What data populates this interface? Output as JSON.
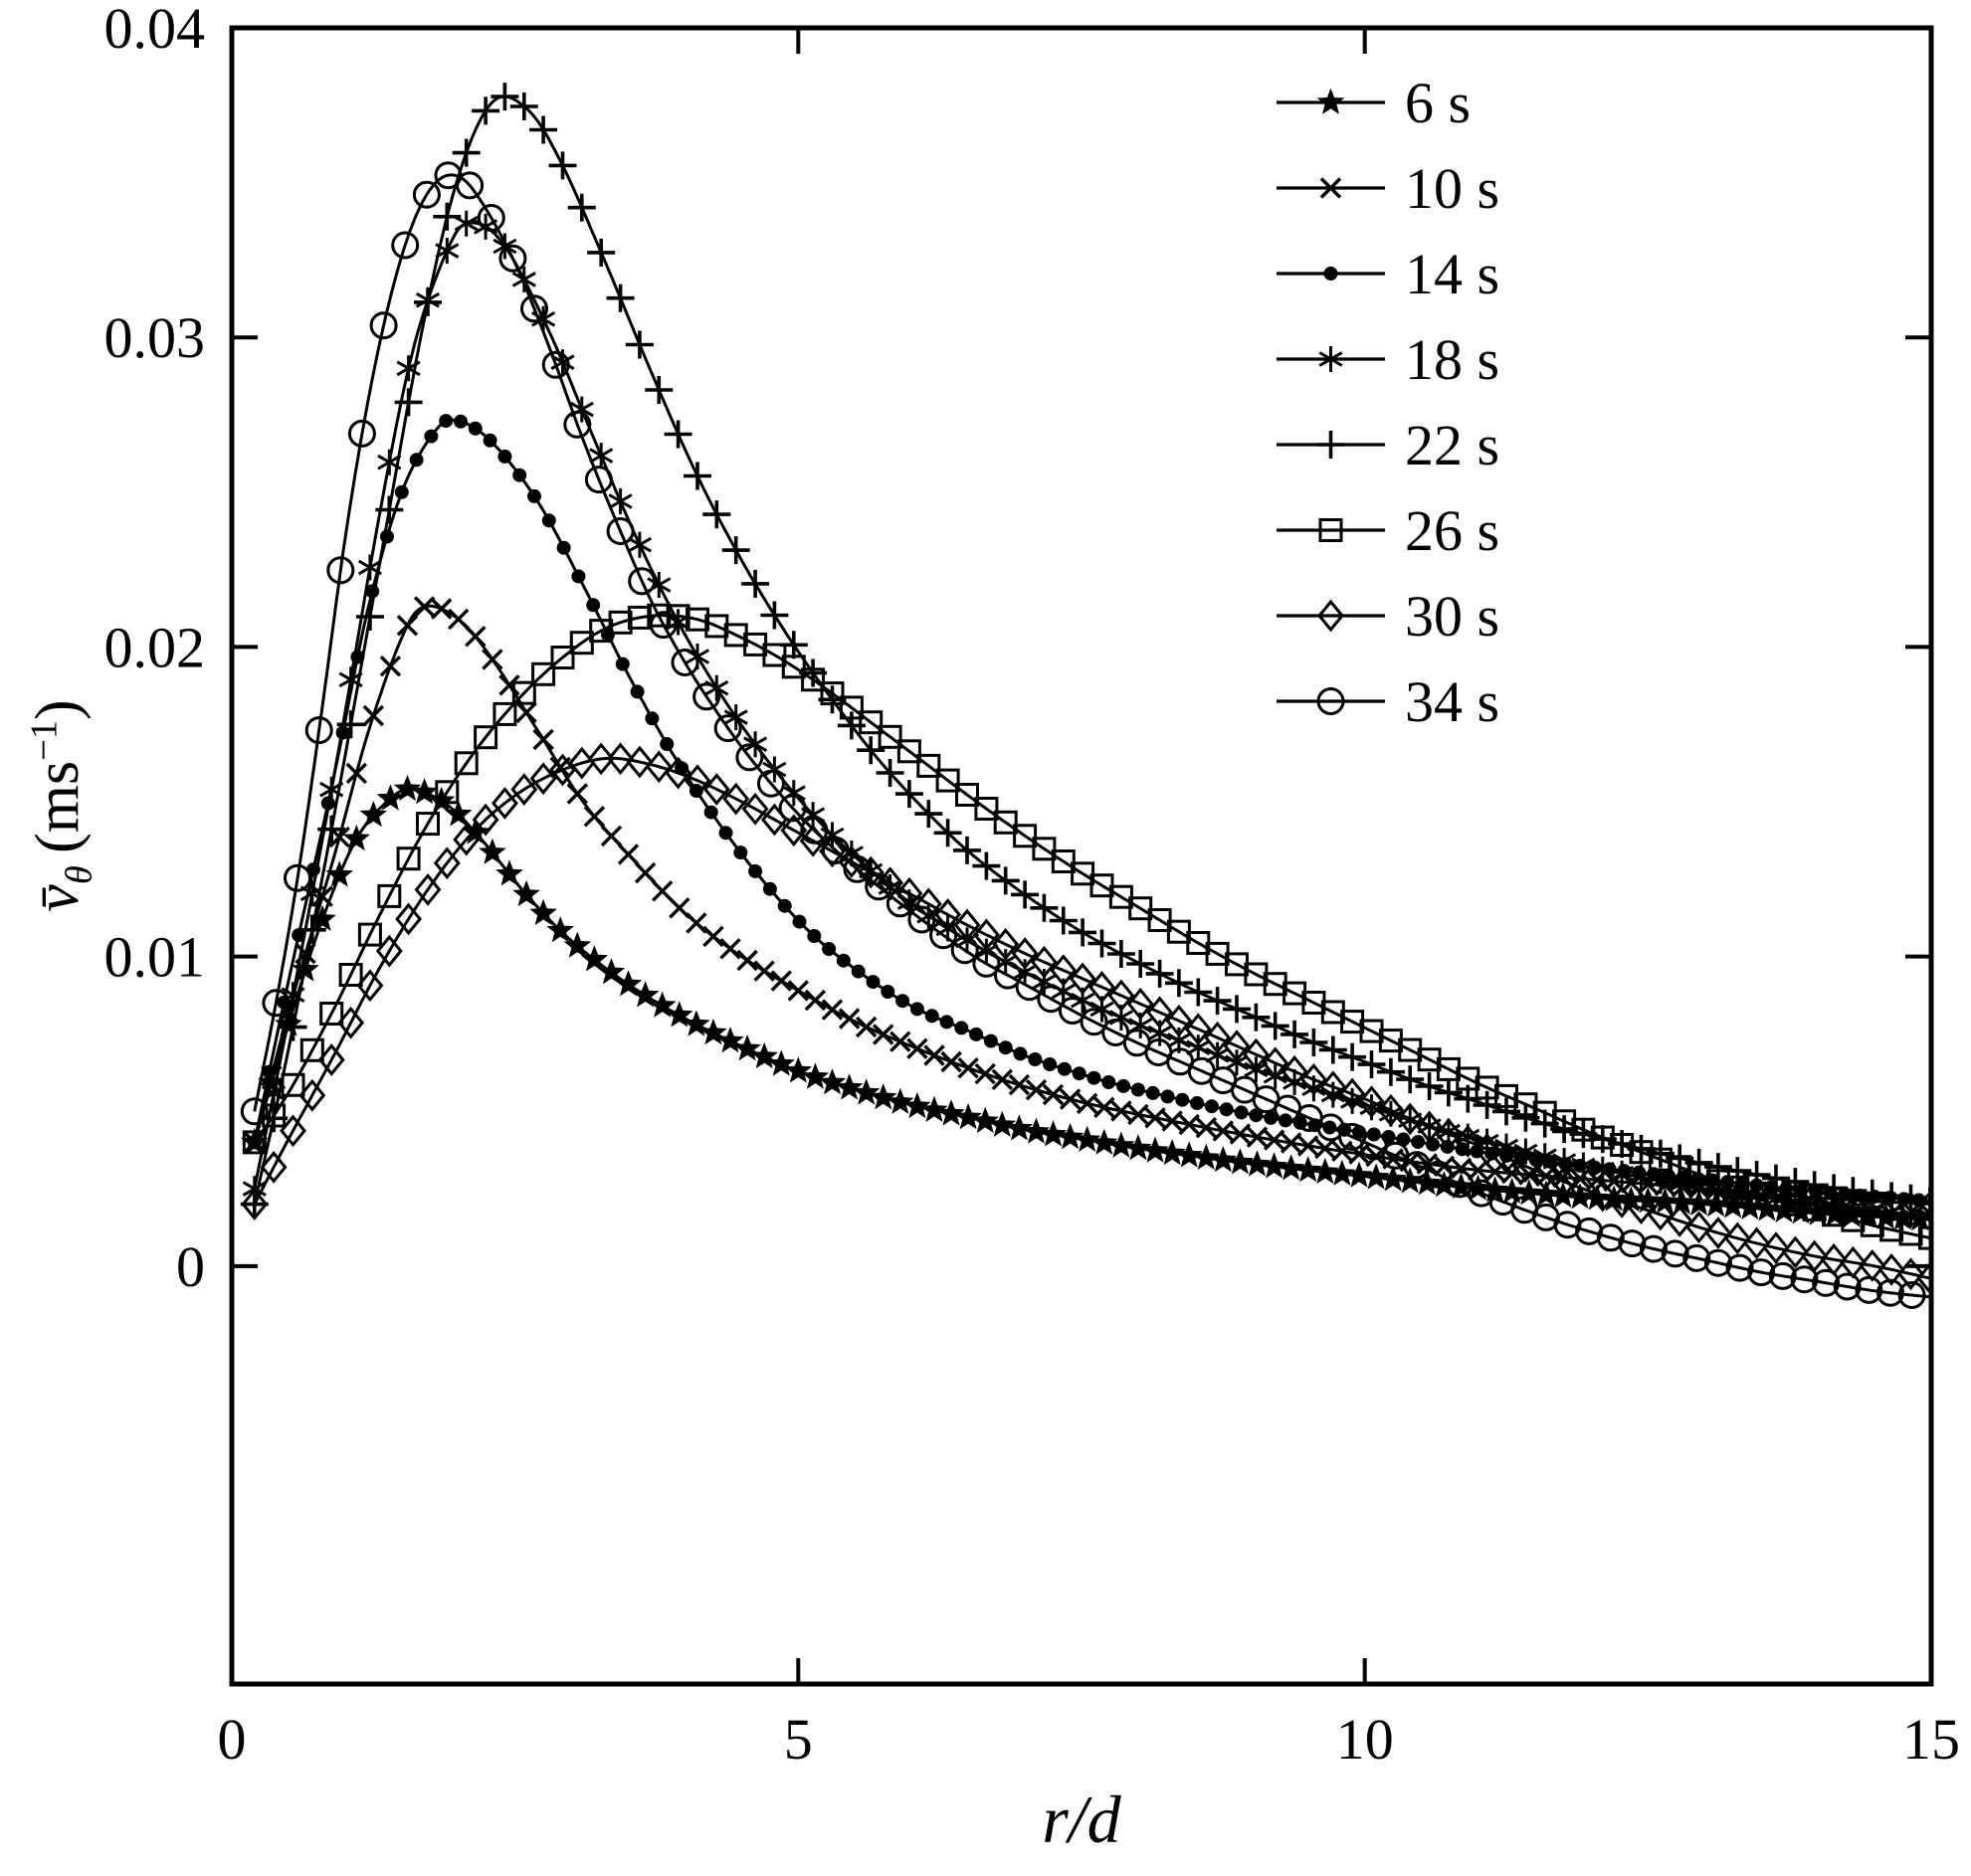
{
  "figure": {
    "background": "#ffffff",
    "ink": "#000000"
  },
  "axes": {
    "xlabel": "r/d",
    "ylabel_var": "v̄",
    "ylabel_sub": "θ",
    "ylabel_unit_pre": " (ms",
    "ylabel_exp": "−1",
    "ylabel_unit_post": ")",
    "x_tick_labels": [
      "0",
      "5",
      "10",
      "15"
    ],
    "y_tick_labels": [
      "0",
      "0.01",
      "0.02",
      "0.03",
      "0.04"
    ]
  },
  "chart_data": {
    "type": "line",
    "title": "",
    "xlabel": "r/d",
    "ylabel": "v̄θ (ms−1)",
    "xlim": [
      0,
      15
    ],
    "ylim": [
      -0.0135,
      0.04
    ],
    "x_ticks": [
      0,
      5,
      10,
      15
    ],
    "y_ticks": [
      0,
      0.01,
      0.02,
      0.03,
      0.04
    ],
    "grid": false,
    "legend_position": "upper right",
    "series": [
      {
        "name": "6 s",
        "marker": "star",
        "points": [
          [
            0.2,
            0.004
          ],
          [
            0.5,
            0.0078
          ],
          [
            0.8,
            0.0112
          ],
          [
            1.1,
            0.0138
          ],
          [
            1.4,
            0.0151
          ],
          [
            1.6,
            0.0154
          ],
          [
            1.9,
            0.0149
          ],
          [
            2.2,
            0.0138
          ],
          [
            2.6,
            0.012
          ],
          [
            3.0,
            0.0105
          ],
          [
            3.5,
            0.0091
          ],
          [
            4.0,
            0.008
          ],
          [
            4.5,
            0.0071
          ],
          [
            5.0,
            0.0063
          ],
          [
            5.5,
            0.0057
          ],
          [
            6.0,
            0.0052
          ],
          [
            6.5,
            0.0048
          ],
          [
            7.0,
            0.0044
          ],
          [
            7.5,
            0.0041
          ],
          [
            8.0,
            0.0038
          ],
          [
            9.0,
            0.0033
          ],
          [
            10.0,
            0.0029
          ],
          [
            11.0,
            0.0025
          ],
          [
            12.0,
            0.0022
          ],
          [
            13.0,
            0.002
          ],
          [
            14.0,
            0.0017
          ],
          [
            15.0,
            0.0015
          ]
        ]
      },
      {
        "name": "10 s",
        "marker": "x",
        "points": [
          [
            0.2,
            0.004
          ],
          [
            0.5,
            0.0082
          ],
          [
            0.9,
            0.0132
          ],
          [
            1.2,
            0.0172
          ],
          [
            1.5,
            0.0203
          ],
          [
            1.7,
            0.0213
          ],
          [
            2.0,
            0.0209
          ],
          [
            2.3,
            0.0196
          ],
          [
            2.7,
            0.0173
          ],
          [
            3.1,
            0.015
          ],
          [
            3.5,
            0.0133
          ],
          [
            4.0,
            0.0114
          ],
          [
            4.5,
            0.01
          ],
          [
            5.0,
            0.0089
          ],
          [
            5.5,
            0.0079
          ],
          [
            6.0,
            0.0071
          ],
          [
            6.5,
            0.0064
          ],
          [
            7.0,
            0.0058
          ],
          [
            7.5,
            0.0053
          ],
          [
            8.0,
            0.0049
          ],
          [
            9.0,
            0.0042
          ],
          [
            10.0,
            0.0036
          ],
          [
            11.0,
            0.0031
          ],
          [
            12.0,
            0.0028
          ],
          [
            13.0,
            0.0025
          ],
          [
            14.0,
            0.0022
          ],
          [
            15.0,
            0.002
          ]
        ]
      },
      {
        "name": "14 s",
        "marker": "dot",
        "points": [
          [
            0.2,
            0.004
          ],
          [
            0.5,
            0.0092
          ],
          [
            0.9,
            0.0158
          ],
          [
            1.2,
            0.0212
          ],
          [
            1.5,
            0.025
          ],
          [
            1.8,
            0.027
          ],
          [
            2.0,
            0.0273
          ],
          [
            2.3,
            0.0266
          ],
          [
            2.7,
            0.0247
          ],
          [
            3.1,
            0.022
          ],
          [
            3.5,
            0.0191
          ],
          [
            3.9,
            0.0165
          ],
          [
            4.3,
            0.0143
          ],
          [
            4.7,
            0.0124
          ],
          [
            5.1,
            0.0108
          ],
          [
            5.5,
            0.0096
          ],
          [
            6.0,
            0.0084
          ],
          [
            6.5,
            0.0076
          ],
          [
            7.0,
            0.0068
          ],
          [
            7.5,
            0.0062
          ],
          [
            8.0,
            0.0057
          ],
          [
            9.0,
            0.0049
          ],
          [
            10.0,
            0.0043
          ],
          [
            11.0,
            0.0037
          ],
          [
            12.0,
            0.0032
          ],
          [
            13.0,
            0.0028
          ],
          [
            14.0,
            0.0024
          ],
          [
            15.0,
            0.0021
          ]
        ]
      },
      {
        "name": "18 s",
        "marker": "asterisk",
        "points": [
          [
            0.2,
            0.0025
          ],
          [
            0.5,
            0.008
          ],
          [
            0.9,
            0.0158
          ],
          [
            1.3,
            0.0242
          ],
          [
            1.6,
            0.0296
          ],
          [
            1.9,
            0.0328
          ],
          [
            2.1,
            0.0337
          ],
          [
            2.4,
            0.033
          ],
          [
            2.8,
            0.0302
          ],
          [
            3.2,
            0.0267
          ],
          [
            3.6,
            0.0233
          ],
          [
            4.0,
            0.0204
          ],
          [
            4.4,
            0.018
          ],
          [
            4.8,
            0.016
          ],
          [
            5.2,
            0.0143
          ],
          [
            5.6,
            0.0129
          ],
          [
            6.0,
            0.0117
          ],
          [
            6.5,
            0.0105
          ],
          [
            7.0,
            0.0095
          ],
          [
            7.5,
            0.0086
          ],
          [
            8.0,
            0.0078
          ],
          [
            8.5,
            0.0071
          ],
          [
            9.0,
            0.0064
          ],
          [
            9.5,
            0.0058
          ],
          [
            10.0,
            0.0052
          ],
          [
            10.5,
            0.0046
          ],
          [
            11.0,
            0.0041
          ],
          [
            12.0,
            0.0032
          ],
          [
            13.0,
            0.0025
          ],
          [
            14.0,
            0.002
          ],
          [
            15.0,
            0.0016
          ]
        ]
      },
      {
        "name": "22 s",
        "marker": "plus",
        "points": [
          [
            0.2,
            0.002
          ],
          [
            0.5,
            0.007
          ],
          [
            0.9,
            0.0145
          ],
          [
            1.3,
            0.0226
          ],
          [
            1.7,
            0.0306
          ],
          [
            2.0,
            0.0352
          ],
          [
            2.3,
            0.0376
          ],
          [
            2.6,
            0.0374
          ],
          [
            2.9,
            0.0357
          ],
          [
            3.3,
            0.0324
          ],
          [
            3.7,
            0.0289
          ],
          [
            4.1,
            0.0256
          ],
          [
            4.5,
            0.0228
          ],
          [
            4.9,
            0.0204
          ],
          [
            5.3,
            0.0183
          ],
          [
            5.7,
            0.0164
          ],
          [
            6.1,
            0.0148
          ],
          [
            6.5,
            0.0134
          ],
          [
            7.0,
            0.012
          ],
          [
            7.5,
            0.0108
          ],
          [
            8.0,
            0.0098
          ],
          [
            8.5,
            0.0089
          ],
          [
            9.0,
            0.0081
          ],
          [
            9.5,
            0.0073
          ],
          [
            10.0,
            0.0066
          ],
          [
            10.5,
            0.0059
          ],
          [
            11.0,
            0.0053
          ],
          [
            11.5,
            0.0047
          ],
          [
            12.0,
            0.0042
          ],
          [
            13.0,
            0.0033
          ],
          [
            14.0,
            0.0026
          ],
          [
            15.0,
            0.0021
          ]
        ]
      },
      {
        "name": "26 s",
        "marker": "square",
        "points": [
          [
            0.2,
            0.004
          ],
          [
            0.5,
            0.0056
          ],
          [
            0.9,
            0.0083
          ],
          [
            1.3,
            0.0113
          ],
          [
            1.7,
            0.0141
          ],
          [
            2.1,
            0.0164
          ],
          [
            2.5,
            0.0182
          ],
          [
            2.9,
            0.0196
          ],
          [
            3.3,
            0.0206
          ],
          [
            3.7,
            0.021
          ],
          [
            4.1,
            0.0209
          ],
          [
            4.5,
            0.0203
          ],
          [
            4.9,
            0.0195
          ],
          [
            5.3,
            0.0185
          ],
          [
            5.7,
            0.0174
          ],
          [
            6.1,
            0.0163
          ],
          [
            6.5,
            0.0152
          ],
          [
            7.0,
            0.0139
          ],
          [
            7.5,
            0.0127
          ],
          [
            8.0,
            0.0116
          ],
          [
            8.5,
            0.0105
          ],
          [
            9.0,
            0.0095
          ],
          [
            9.5,
            0.0086
          ],
          [
            10.0,
            0.0077
          ],
          [
            10.5,
            0.0068
          ],
          [
            11.0,
            0.0059
          ],
          [
            11.5,
            0.0051
          ],
          [
            12.0,
            0.0043
          ],
          [
            12.5,
            0.0036
          ],
          [
            13.0,
            0.0029
          ],
          [
            13.5,
            0.0023
          ],
          [
            14.0,
            0.0018
          ],
          [
            14.5,
            0.0013
          ],
          [
            15.0,
            0.0009
          ]
        ]
      },
      {
        "name": "30 s",
        "marker": "diamond",
        "points": [
          [
            0.2,
            0.002
          ],
          [
            0.5,
            0.0041
          ],
          [
            0.9,
            0.0068
          ],
          [
            1.3,
            0.0096
          ],
          [
            1.7,
            0.012
          ],
          [
            2.1,
            0.0139
          ],
          [
            2.5,
            0.0152
          ],
          [
            2.9,
            0.016
          ],
          [
            3.3,
            0.0164
          ],
          [
            3.7,
            0.0162
          ],
          [
            4.1,
            0.0157
          ],
          [
            4.5,
            0.015
          ],
          [
            4.9,
            0.0142
          ],
          [
            5.3,
            0.0134
          ],
          [
            5.7,
            0.0126
          ],
          [
            6.1,
            0.0118
          ],
          [
            6.5,
            0.011
          ],
          [
            7.0,
            0.0101
          ],
          [
            7.5,
            0.0093
          ],
          [
            8.0,
            0.0085
          ],
          [
            8.5,
            0.0077
          ],
          [
            9.0,
            0.0069
          ],
          [
            9.5,
            0.0061
          ],
          [
            10.0,
            0.0054
          ],
          [
            10.5,
            0.0046
          ],
          [
            11.0,
            0.0039
          ],
          [
            11.5,
            0.0031
          ],
          [
            12.0,
            0.0024
          ],
          [
            12.5,
            0.0018
          ],
          [
            13.0,
            0.0012
          ],
          [
            13.5,
            0.0007
          ],
          [
            14.0,
            0.0003
          ],
          [
            14.5,
            0.0
          ],
          [
            15.0,
            -0.0004
          ]
        ]
      },
      {
        "name": "34 s",
        "marker": "circle",
        "points": [
          [
            0.2,
            0.005
          ],
          [
            0.4,
            0.0087
          ],
          [
            0.6,
            0.013
          ],
          [
            0.8,
            0.0181
          ],
          [
            1.0,
            0.0235
          ],
          [
            1.2,
            0.0279
          ],
          [
            1.4,
            0.0313
          ],
          [
            1.6,
            0.0337
          ],
          [
            1.8,
            0.035
          ],
          [
            2.0,
            0.0352
          ],
          [
            2.2,
            0.0344
          ],
          [
            2.5,
            0.0324
          ],
          [
            2.8,
            0.0297
          ],
          [
            3.1,
            0.0267
          ],
          [
            3.4,
            0.024
          ],
          [
            3.7,
            0.0215
          ],
          [
            4.0,
            0.0195
          ],
          [
            4.3,
            0.0178
          ],
          [
            4.6,
            0.0163
          ],
          [
            5.0,
            0.0146
          ],
          [
            5.4,
            0.0132
          ],
          [
            5.8,
            0.012
          ],
          [
            6.2,
            0.0109
          ],
          [
            6.6,
            0.0099
          ],
          [
            7.0,
            0.0091
          ],
          [
            7.5,
            0.0081
          ],
          [
            8.0,
            0.0072
          ],
          [
            8.5,
            0.0064
          ],
          [
            9.0,
            0.0056
          ],
          [
            9.5,
            0.0048
          ],
          [
            10.0,
            0.004
          ],
          [
            10.5,
            0.0032
          ],
          [
            11.0,
            0.0024
          ],
          [
            11.5,
            0.0017
          ],
          [
            12.0,
            0.0011
          ],
          [
            12.5,
            0.0006
          ],
          [
            13.0,
            0.0002
          ],
          [
            13.5,
            -0.0002
          ],
          [
            14.0,
            -0.0005
          ],
          [
            14.5,
            -0.0008
          ],
          [
            15.0,
            -0.001
          ]
        ]
      }
    ]
  }
}
